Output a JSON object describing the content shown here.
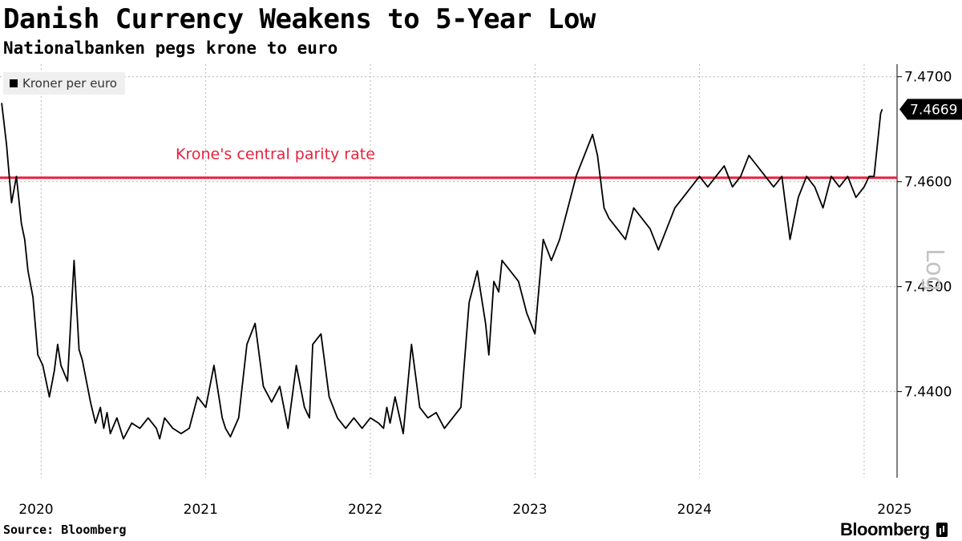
{
  "header": {
    "title": "Danish Currency Weakens to 5-Year Low",
    "subtitle": "Nationalbanken pegs krone to euro"
  },
  "footer": {
    "source": "Source: Bloomberg",
    "brand": "Bloomberg"
  },
  "colors": {
    "line": "#000000",
    "parity": "#e8213d",
    "grid": "#b8b8b8",
    "legend_bg": "#efefef"
  },
  "chart_data": {
    "type": "line",
    "title": "Danish Currency Weakens to 5-Year Low",
    "subtitle": "Nationalbanken pegs krone to euro",
    "legend": [
      "Kroner per euro"
    ],
    "legend_position": "top-left",
    "ylabel": "",
    "xlabel": "",
    "scale_label": "Log",
    "xlim": [
      2019.75,
      2025.2
    ],
    "ylim": [
      7.4318,
      7.4712
    ],
    "y_ticks": [
      7.47,
      7.46,
      7.45,
      7.44
    ],
    "y_tick_labels": [
      "7.4700",
      "7.4600",
      "7.4500",
      "7.4400"
    ],
    "x_ticks": [
      2020,
      2021,
      2022,
      2023,
      2024,
      2025
    ],
    "x_tick_labels": [
      "2020",
      "2021",
      "2022",
      "2023",
      "2024",
      "2025"
    ],
    "grid": true,
    "last_value": 7.4669,
    "last_value_label": "7.4669",
    "reference_line": {
      "value": 7.46038,
      "label": "Krone's central parity rate"
    },
    "series": [
      {
        "name": "Kroner per euro",
        "x": [
          2019.76,
          2019.79,
          2019.82,
          2019.85,
          2019.88,
          2019.9,
          2019.92,
          2019.95,
          2019.98,
          2020.01,
          2020.05,
          2020.08,
          2020.1,
          2020.12,
          2020.16,
          2020.2,
          2020.23,
          2020.25,
          2020.3,
          2020.33,
          2020.36,
          2020.38,
          2020.4,
          2020.42,
          2020.46,
          2020.5,
          2020.55,
          2020.6,
          2020.65,
          2020.7,
          2020.72,
          2020.75,
          2020.8,
          2020.85,
          2020.9,
          2020.95,
          2021.0,
          2021.05,
          2021.1,
          2021.12,
          2021.15,
          2021.2,
          2021.25,
          2021.3,
          2021.35,
          2021.4,
          2021.45,
          2021.5,
          2021.55,
          2021.6,
          2021.63,
          2021.65,
          2021.7,
          2021.75,
          2021.8,
          2021.85,
          2021.9,
          2021.95,
          2022.0,
          2022.05,
          2022.08,
          2022.1,
          2022.12,
          2022.15,
          2022.2,
          2022.25,
          2022.3,
          2022.35,
          2022.4,
          2022.45,
          2022.5,
          2022.55,
          2022.6,
          2022.65,
          2022.7,
          2022.72,
          2022.75,
          2022.78,
          2022.8,
          2022.85,
          2022.9,
          2022.95,
          2023.0,
          2023.05,
          2023.1,
          2023.15,
          2023.2,
          2023.25,
          2023.3,
          2023.35,
          2023.38,
          2023.42,
          2023.45,
          2023.5,
          2023.55,
          2023.6,
          2023.65,
          2023.7,
          2023.75,
          2023.8,
          2023.85,
          2023.9,
          2023.95,
          2024.0,
          2024.05,
          2024.1,
          2024.15,
          2024.2,
          2024.25,
          2024.3,
          2024.35,
          2024.4,
          2024.45,
          2024.5,
          2024.55,
          2024.6,
          2024.65,
          2024.7,
          2024.75,
          2024.8,
          2024.85,
          2024.9,
          2024.95,
          2025.0,
          2025.03,
          2025.06,
          2025.08,
          2025.1,
          2025.11
        ],
        "values": [
          7.4675,
          7.4635,
          7.458,
          7.4605,
          7.456,
          7.4545,
          7.4515,
          7.449,
          7.4435,
          7.4425,
          7.4395,
          7.442,
          7.4445,
          7.4425,
          7.441,
          7.4525,
          7.444,
          7.443,
          7.439,
          7.437,
          7.4385,
          7.4365,
          7.438,
          7.436,
          7.4375,
          7.4355,
          7.437,
          7.4365,
          7.4375,
          7.4365,
          7.4355,
          7.4375,
          7.4365,
          7.436,
          7.4365,
          7.4395,
          7.4385,
          7.4425,
          7.4375,
          7.4365,
          7.4357,
          7.4375,
          7.4445,
          7.4465,
          7.4405,
          7.439,
          7.4405,
          7.4365,
          7.4425,
          7.4385,
          7.4375,
          7.4445,
          7.4455,
          7.4395,
          7.4375,
          7.4365,
          7.4375,
          7.4365,
          7.4375,
          7.437,
          7.4365,
          7.4385,
          7.437,
          7.4395,
          7.436,
          7.4445,
          7.4385,
          7.4375,
          7.438,
          7.4365,
          7.4375,
          7.4385,
          7.4485,
          7.4515,
          7.4465,
          7.4435,
          7.4505,
          7.4495,
          7.4525,
          7.4515,
          7.4505,
          7.4475,
          7.4455,
          7.4545,
          7.4525,
          7.4545,
          7.4575,
          7.4605,
          7.4625,
          7.4645,
          7.4625,
          7.4575,
          7.4565,
          7.4555,
          7.4545,
          7.4575,
          7.4565,
          7.4555,
          7.4535,
          7.4555,
          7.4575,
          7.4585,
          7.4595,
          7.4605,
          7.4595,
          7.4605,
          7.4615,
          7.4595,
          7.4605,
          7.4625,
          7.4615,
          7.4605,
          7.4595,
          7.4605,
          7.4545,
          7.4585,
          7.4605,
          7.4595,
          7.4575,
          7.4605,
          7.4595,
          7.4605,
          7.4585,
          7.4595,
          7.4605,
          7.4605,
          7.4635,
          7.4665,
          7.4669
        ]
      }
    ]
  }
}
